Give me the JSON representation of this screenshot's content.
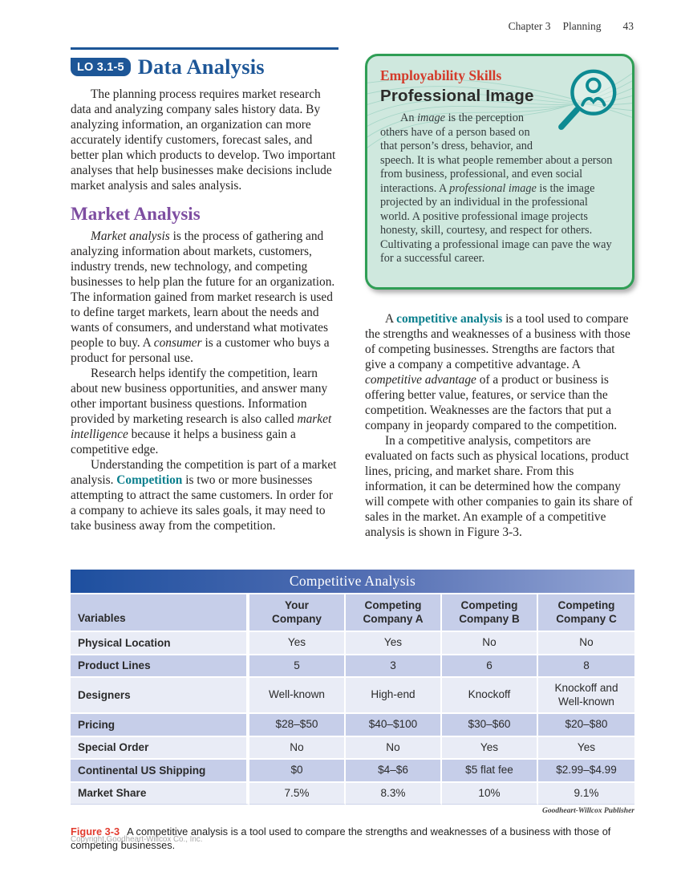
{
  "header": {
    "chapter": "Chapter 3",
    "section": "Planning",
    "page_number": "43"
  },
  "main": {
    "lo_badge": "LO 3.1-5",
    "title": "Data Analysis",
    "intro": [
      {
        "t": "The planning process requires market research data and analyzing company sales history data. By analyzing information, an organization can more accurately identify customers, forecast sales, and better plan which products to develop. Two important analyses that help businesses make decisions include market analysis and sales analysis.",
        "s": "n"
      }
    ],
    "market_heading": "Market Analysis",
    "market_p1": [
      {
        "t": "Market analysis",
        "s": "i"
      },
      {
        "t": " is the process of gathering and analyzing information about markets, customers, industry trends, new technology, and competing businesses to help plan the future for an organization. The information gained from market research is used to define target markets, learn about the needs and wants of consumers, and understand what motivates people to buy. A ",
        "s": "n"
      },
      {
        "t": "consumer",
        "s": "i"
      },
      {
        "t": " is a customer who buys a product for personal use.",
        "s": "n"
      }
    ],
    "market_p2": [
      {
        "t": "Research helps identify the competition, learn about new business opportunities, and answer many other important business questions. Information provided by marketing research is also called ",
        "s": "n"
      },
      {
        "t": "market intelligence",
        "s": "i"
      },
      {
        "t": " because it helps a business gain a competitive edge.",
        "s": "n"
      }
    ],
    "market_p3": [
      {
        "t": "Understanding the competition is part of a market analysis. ",
        "s": "n"
      },
      {
        "t": "Competition",
        "s": "bt"
      },
      {
        "t": " is two or more businesses attempting to attract the same customers. In order for a company to achieve its sales goals, it may need to take business away from the competition.",
        "s": "n"
      }
    ]
  },
  "skills_box": {
    "kicker": "Employability Skills",
    "title": "Professional Image",
    "icon": "magnifier-person-icon",
    "border_color": "#2f9e55",
    "background_color": "#cfe8de",
    "kicker_color": "#d43a2a",
    "icon_color": "#0d8a92",
    "body": [
      {
        "t": "An ",
        "s": "n"
      },
      {
        "t": "image",
        "s": "i"
      },
      {
        "t": " is the perception others have of a person based on that person’s dress, behavior, and speech. It is what people remember about a person from business, professional, and even social interactions. A ",
        "s": "n"
      },
      {
        "t": "professional image",
        "s": "i"
      },
      {
        "t": " is the image projected by an individual in the professional world. A positive professional image projects honesty, skill, courtesy, and respect for others. Cultivating a professional image can pave the way for a successful career.",
        "s": "n"
      }
    ]
  },
  "right_column": {
    "p1": [
      {
        "t": "A ",
        "s": "n"
      },
      {
        "t": "competitive analysis",
        "s": "bt"
      },
      {
        "t": " is a tool used to compare the strengths and weaknesses of a business with those of competing businesses. Strengths are factors that give a company a competitive advantage. A ",
        "s": "n"
      },
      {
        "t": "competitive advantage",
        "s": "i"
      },
      {
        "t": " of a product or business is offering better value, features, or service than the competition. Weaknesses are the factors that put a company in jeopardy compared to the competition.",
        "s": "n"
      }
    ],
    "p2": [
      {
        "t": "In a competitive analysis, competitors are evaluated on facts such as physical locations, product lines, pricing, and market share. From this information, it can be determined how the company will compete with other companies to gain its share of sales in the market. An example of a competitive analysis is shown in Figure 3-3.",
        "s": "n"
      }
    ]
  },
  "table": {
    "title": "Competitive Analysis",
    "title_gradient": [
      "#1d4f9f",
      "#95a6d5"
    ],
    "row_dark_color": "#c6cee9",
    "row_light_color": "#e9ecf6",
    "columns": [
      "Variables",
      "Your\nCompany",
      "Competing\nCompany A",
      "Competing\nCompany B",
      "Competing\nCompany C"
    ],
    "rows": [
      {
        "label": "Physical Location",
        "values": [
          "Yes",
          "Yes",
          "No",
          "No"
        ]
      },
      {
        "label": "Product Lines",
        "values": [
          "5",
          "3",
          "6",
          "8"
        ]
      },
      {
        "label": "Designers",
        "values": [
          "Well-known",
          "High-end",
          "Knockoff",
          "Knockoff and Well-known"
        ]
      },
      {
        "label": "Pricing",
        "values": [
          "$28–$50",
          "$40–$100",
          "$30–$60",
          "$20–$80"
        ]
      },
      {
        "label": "Special Order",
        "values": [
          "No",
          "No",
          "Yes",
          "Yes"
        ]
      },
      {
        "label": "Continental US Shipping",
        "values": [
          "$0",
          "$4–$6",
          "$5 flat fee",
          "$2.99–$4.99"
        ]
      },
      {
        "label": "Market Share",
        "values": [
          "7.5%",
          "8.3%",
          "10%",
          "9.1%"
        ]
      }
    ],
    "credit": "Goodheart-Willcox Publisher"
  },
  "figure": {
    "label": "Figure 3-3",
    "caption": "A competitive analysis is a tool used to compare the strengths and weaknesses of a business with those of competing businesses."
  },
  "footer": {
    "copyright": "Copyright Goodheart-Willcox Co., Inc."
  }
}
